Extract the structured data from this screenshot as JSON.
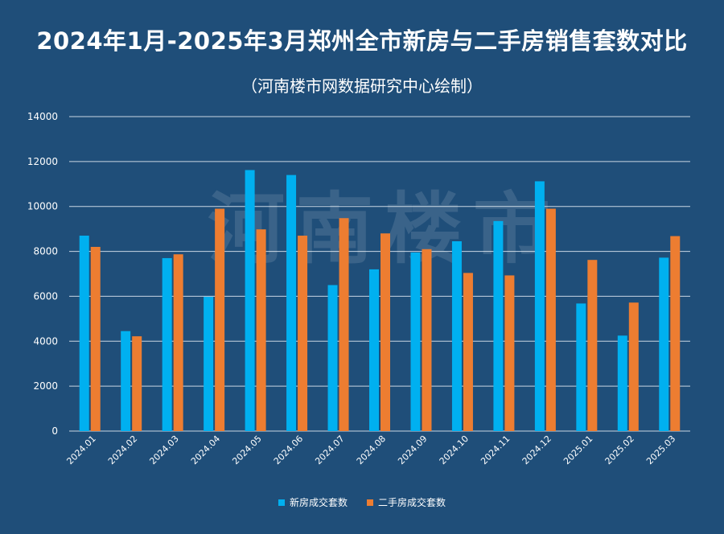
{
  "chart_data": {
    "type": "bar",
    "title": "2024年1月-2025年3月郑州全市新房与二手房销售套数对比",
    "subtitle": "（河南楼市网数据研究中心绘制）",
    "watermark": "河南楼市",
    "categories": [
      "2024.01",
      "2024.02",
      "2024.03",
      "2024.04",
      "2024.05",
      "2024.06",
      "2024.07",
      "2024.08",
      "2024.09",
      "2024.10",
      "2024.11",
      "2024.12",
      "2025.01",
      "2025.02",
      "2025.03"
    ],
    "series": [
      {
        "name": "新房成交套数",
        "color": "#00b0f0",
        "values": [
          8700,
          4450,
          7700,
          5980,
          11620,
          11400,
          6500,
          7200,
          7950,
          8450,
          9350,
          11120,
          5680,
          4250,
          7720
        ]
      },
      {
        "name": "二手房成交套数",
        "color": "#ed7d31",
        "values": [
          8200,
          4220,
          7870,
          9900,
          8980,
          8700,
          9480,
          8800,
          8100,
          7040,
          6930,
          9900,
          7620,
          5720,
          8680
        ]
      }
    ],
    "yticks": [
      "0",
      "2000",
      "4000",
      "6000",
      "8000",
      "10000",
      "12000",
      "14000"
    ],
    "ylim": [
      0,
      14000
    ],
    "grid": true,
    "legend_position": "bottom-center",
    "colors": {
      "background": "#1f4e79",
      "grid": "#c9d6e3",
      "text": "#ffffff"
    }
  }
}
